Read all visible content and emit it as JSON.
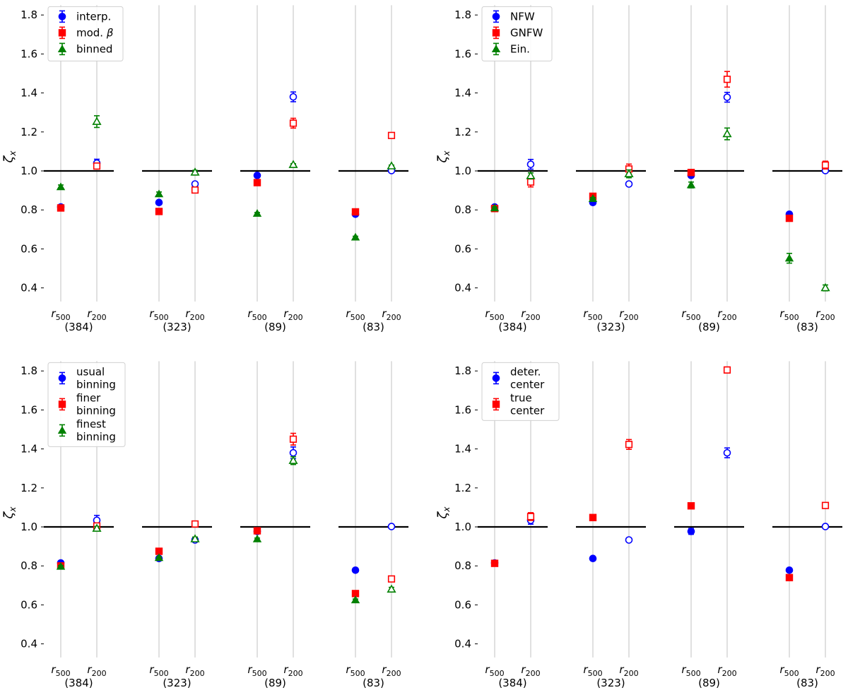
{
  "colors": {
    "blue": "#0000ff",
    "red": "#ff0000",
    "green": "#008000",
    "axis": "#000000",
    "grid": "#cccccc"
  },
  "ylabel": "ζx",
  "chart_data": [
    {
      "type": "scatter",
      "id": "tl",
      "ylabel": "ζx",
      "ylim": [
        0.33,
        1.85
      ],
      "yticks": [
        0.4,
        0.6,
        0.8,
        1.0,
        1.2,
        1.4,
        1.6,
        1.8
      ],
      "reference_line": 1.0,
      "groups": [
        "(384)",
        "(323)",
        "(89)",
        "(83)"
      ],
      "positions": [
        "r500",
        "r200"
      ],
      "legend": {
        "location": "upper-left",
        "entries": [
          {
            "label": "interp.",
            "color": "#0000ff",
            "marker": "circle"
          },
          {
            "label": "mod. β",
            "color": "#ff0000",
            "marker": "square"
          },
          {
            "label": "binned",
            "color": "#008000",
            "marker": "triangle"
          }
        ]
      },
      "series": [
        {
          "name": "interp.",
          "color": "#0000ff",
          "marker": "circle",
          "r500": [
            0.815,
            0.838,
            0.977,
            0.778
          ],
          "r500_err": [
            0.005,
            0.005,
            0.005,
            0.005
          ],
          "r200": [
            1.04,
            0.933,
            1.38,
            1.002
          ],
          "r200_err": [
            0.02,
            0.01,
            0.025,
            0.005
          ]
        },
        {
          "name": "mod. β",
          "color": "#ff0000",
          "marker": "square",
          "r500": [
            0.81,
            0.792,
            0.94,
            0.79
          ],
          "r500_err": [
            0.005,
            0.005,
            0.005,
            0.005
          ],
          "r200": [
            1.025,
            0.902,
            1.245,
            1.182
          ],
          "r200_err": [
            0.015,
            0.015,
            0.025,
            0.01
          ]
        },
        {
          "name": "binned",
          "color": "#008000",
          "marker": "triangle",
          "r500": [
            0.918,
            0.882,
            0.782,
            0.66
          ],
          "r500_err": [
            0.01,
            0.01,
            0.005,
            0.005
          ],
          "r200": [
            1.253,
            0.993,
            1.032,
            1.025
          ],
          "r200_err": [
            0.03,
            0.01,
            0.005,
            0.005
          ]
        }
      ]
    },
    {
      "type": "scatter",
      "id": "tr",
      "ylabel": "ζx",
      "ylim": [
        0.33,
        1.85
      ],
      "yticks": [
        0.4,
        0.6,
        0.8,
        1.0,
        1.2,
        1.4,
        1.6,
        1.8
      ],
      "reference_line": 1.0,
      "groups": [
        "(384)",
        "(323)",
        "(89)",
        "(83)"
      ],
      "positions": [
        "r500",
        "r200"
      ],
      "legend": {
        "location": "upper-left",
        "entries": [
          {
            "label": "NFW",
            "color": "#0000ff",
            "marker": "circle"
          },
          {
            "label": "GNFW",
            "color": "#ff0000",
            "marker": "square"
          },
          {
            "label": "Ein.",
            "color": "#008000",
            "marker": "triangle"
          }
        ]
      },
      "series": [
        {
          "name": "NFW",
          "color": "#0000ff",
          "marker": "circle",
          "r500": [
            0.815,
            0.838,
            0.977,
            0.778
          ],
          "r500_err": [
            0.005,
            0.005,
            0.01,
            0.005
          ],
          "r200": [
            1.034,
            0.933,
            1.378,
            1.002
          ],
          "r200_err": [
            0.025,
            0.01,
            0.025,
            0.005
          ]
        },
        {
          "name": "GNFW",
          "color": "#ff0000",
          "marker": "square",
          "r500": [
            0.807,
            0.87,
            0.992,
            0.757
          ],
          "r500_err": [
            0.005,
            0.005,
            0.01,
            0.005
          ],
          "r200": [
            0.943,
            1.01,
            1.47,
            1.03
          ],
          "r200_err": [
            0.025,
            0.025,
            0.04,
            0.02
          ]
        },
        {
          "name": "Ein.",
          "color": "#008000",
          "marker": "triangle",
          "r500": [
            0.81,
            0.858,
            0.928,
            0.552
          ],
          "r500_err": [
            0.005,
            0.005,
            0.015,
            0.025
          ],
          "r200": [
            0.975,
            0.985,
            1.19,
            0.4
          ],
          "r200_err": [
            0.015,
            0.02,
            0.03,
            0.015
          ]
        }
      ]
    },
    {
      "type": "scatter",
      "id": "bl",
      "ylabel": "ζx",
      "ylim": [
        0.33,
        1.85
      ],
      "yticks": [
        0.4,
        0.6,
        0.8,
        1.0,
        1.2,
        1.4,
        1.6,
        1.8
      ],
      "reference_line": 1.0,
      "groups": [
        "(384)",
        "(323)",
        "(89)",
        "(83)"
      ],
      "positions": [
        "r500",
        "r200"
      ],
      "legend": {
        "location": "upper-left",
        "entries": [
          {
            "label": "usual binning",
            "lines": [
              "usual",
              "binning"
            ],
            "color": "#0000ff",
            "marker": "circle"
          },
          {
            "label": "finer binning",
            "lines": [
              "finer",
              "binning"
            ],
            "color": "#ff0000",
            "marker": "square"
          },
          {
            "label": "finest binning",
            "lines": [
              "finest",
              "binning"
            ],
            "color": "#008000",
            "marker": "triangle"
          }
        ]
      },
      "series": [
        {
          "name": "usual binning",
          "color": "#0000ff",
          "marker": "circle",
          "r500": [
            0.815,
            0.838,
            0.977,
            0.778
          ],
          "r500_err": [
            0.005,
            0.005,
            0.005,
            0.005
          ],
          "r200": [
            1.034,
            0.933,
            1.38,
            1.002
          ],
          "r200_err": [
            0.025,
            0.01,
            0.03,
            0.005
          ]
        },
        {
          "name": "finer binning",
          "color": "#ff0000",
          "marker": "square",
          "r500": [
            0.8,
            0.875,
            0.98,
            0.658
          ],
          "r500_err": [
            0.005,
            0.005,
            0.01,
            0.005
          ],
          "r200": [
            1.005,
            1.015,
            1.45,
            0.733
          ],
          "r200_err": [
            0.01,
            0.01,
            0.03,
            0.01
          ]
        },
        {
          "name": "finest binning",
          "color": "#008000",
          "marker": "triangle",
          "r500": [
            0.797,
            0.842,
            0.938,
            0.625
          ],
          "r500_err": [
            0.005,
            0.005,
            0.005,
            0.005
          ],
          "r200": [
            0.992,
            0.938,
            1.34,
            0.68
          ],
          "r200_err": [
            0.01,
            0.01,
            0.02,
            0.01
          ]
        }
      ]
    },
    {
      "type": "scatter",
      "id": "br",
      "ylabel": "ζx",
      "ylim": [
        0.33,
        1.85
      ],
      "yticks": [
        0.4,
        0.6,
        0.8,
        1.0,
        1.2,
        1.4,
        1.6,
        1.8
      ],
      "reference_line": 1.0,
      "groups": [
        "(384)",
        "(323)",
        "(89)",
        "(83)"
      ],
      "positions": [
        "r500",
        "r200"
      ],
      "legend": {
        "location": "upper-left",
        "entries": [
          {
            "label": "deter. center",
            "lines": [
              "deter.",
              "center"
            ],
            "color": "#0000ff",
            "marker": "circle"
          },
          {
            "label": "true center",
            "lines": [
              "true",
              "center"
            ],
            "color": "#ff0000",
            "marker": "square"
          }
        ]
      },
      "series": [
        {
          "name": "deter. center",
          "color": "#0000ff",
          "marker": "circle",
          "r500": [
            0.815,
            0.838,
            0.977,
            0.778
          ],
          "r500_err": [
            0.005,
            0.005,
            0.015,
            0.005
          ],
          "r200": [
            1.034,
            0.933,
            1.38,
            1.002
          ],
          "r200_err": [
            0.02,
            0.01,
            0.025,
            0.005
          ]
        },
        {
          "name": "true center",
          "color": "#ff0000",
          "marker": "square",
          "r500": [
            0.813,
            1.048,
            1.108,
            0.74
          ],
          "r500_err": [
            0.005,
            0.005,
            0.005,
            0.005
          ],
          "r200": [
            1.053,
            1.423,
            1.805,
            1.11
          ],
          "r200_err": [
            0.02,
            0.025,
            0.015,
            0.01
          ]
        }
      ]
    }
  ]
}
